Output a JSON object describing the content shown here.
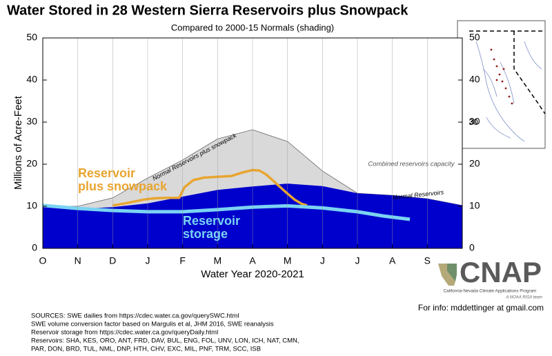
{
  "chart_data": {
    "type": "area",
    "title": "Water Stored in 28 Western Sierra Reservoirs plus Snowpack",
    "subtitle": "Compared to 2000-15 Normals (shading)",
    "ylabel": "Millions of Acre-Feet",
    "xlabel": "Water Year 2020-2021",
    "xlim": [
      0,
      12
    ],
    "xticks": [
      {
        "value": 0,
        "label": "O"
      },
      {
        "value": 1,
        "label": "N"
      },
      {
        "value": 2,
        "label": "D"
      },
      {
        "value": 3,
        "label": "J"
      },
      {
        "value": 4,
        "label": "F"
      },
      {
        "value": 5,
        "label": "M"
      },
      {
        "value": 6,
        "label": "A"
      },
      {
        "value": 7,
        "label": "M"
      },
      {
        "value": 8,
        "label": "J"
      },
      {
        "value": 9,
        "label": "J"
      },
      {
        "value": 10,
        "label": "A"
      },
      {
        "value": 11,
        "label": "S"
      }
    ],
    "ylim": [
      0,
      50
    ],
    "yticks": [
      0,
      10,
      20,
      30,
      40,
      50
    ],
    "y2lim": [
      0,
      50
    ],
    "y2ticks": [
      0,
      10,
      20,
      30,
      40,
      50
    ],
    "grid": "x",
    "series": [
      {
        "name": "Normal Reservoirs plus snowpack",
        "color": "#d9d9d9",
        "kind": "area",
        "x": [
          0,
          1,
          2,
          3,
          4,
          5,
          6,
          7,
          8,
          9,
          10,
          11,
          12
        ],
        "values": [
          10,
          10,
          12,
          16.7,
          21,
          26,
          28.2,
          25.4,
          18.4,
          13.1,
          12.6,
          11.8,
          10.2
        ]
      },
      {
        "name": "Normal Reservoirs",
        "color": "#0000cc",
        "kind": "area",
        "x": [
          0,
          1,
          2,
          3,
          4,
          5,
          6,
          7,
          8,
          9,
          10,
          11,
          12
        ],
        "values": [
          10,
          9.4,
          9.8,
          10.7,
          12.3,
          13.9,
          14.7,
          15.4,
          14.8,
          13.1,
          12.6,
          11.8,
          10.2
        ]
      },
      {
        "name": "Reservoir\nplus snowpack",
        "color": "#e8a530",
        "kind": "line",
        "x": [
          2,
          2.3,
          2.6,
          2.9,
          3.2,
          3.6,
          3.9,
          4.05,
          4.3,
          4.6,
          5,
          5.4,
          5.7,
          6,
          6.2,
          6.4,
          6.6,
          6.8,
          7,
          7.2,
          7.4,
          7.56
        ],
        "values": [
          10.2,
          10.6,
          11.1,
          11.6,
          11.9,
          12,
          12,
          14.5,
          16.2,
          16.8,
          17,
          17.2,
          18,
          18.6,
          18.5,
          17.5,
          16,
          14.5,
          13,
          11.6,
          10.6,
          10.2
        ]
      },
      {
        "name": "Reservoir\nstorage",
        "color": "#7ad3f2",
        "kind": "line",
        "x": [
          0,
          1,
          2,
          3,
          4,
          5,
          6,
          7,
          8,
          9,
          9.73,
          10.5
        ],
        "values": [
          10.2,
          9.5,
          9,
          8.7,
          8.7,
          9.2,
          9.8,
          10.1,
          9.6,
          8.7,
          7.7,
          6.9
        ]
      }
    ],
    "annotations": [
      "Combined reservoirs capacity"
    ]
  },
  "map": {
    "lat_label": "30"
  },
  "notes": [
    "SOURCES: SWE dailies from https://cdec.water.ca.gov/querySWC.html",
    "SWE volume conversion factor based on Margulis et al, JHM 2016, SWE reanalysis",
    "Reservoir storage from https://cdec.water.ca.gov/queryDaily.html",
    "Reservoirs: SHA, KES, ORO, ANT, FRD, DAV, BUL, ENG, FOL, UNV, LON, ICH, NAT, CMN,",
    "PAR, DON, BRD, TUL, NML, DNP, HTH, CHV, EXC, MIL, PNF, TRM, SCC, ISB"
  ],
  "logo": {
    "name": "CNAP",
    "subtitle": "California-Nevada Climate Applications Program",
    "tagline": "A NOAA RISA team"
  },
  "contact": "For info: mddettinger at gmail.com"
}
